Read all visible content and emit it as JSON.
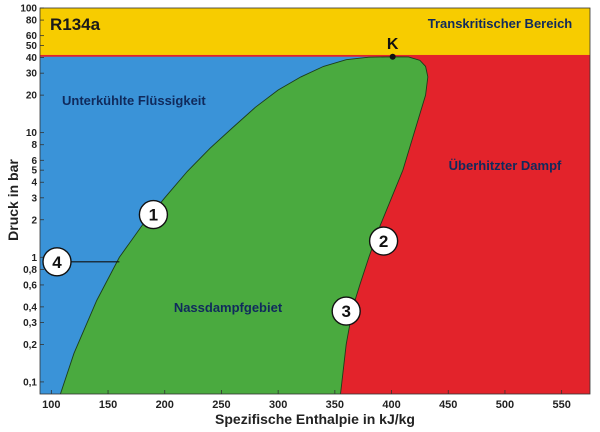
{
  "chart_data": {
    "type": "area",
    "title": "R134a",
    "xlabel": "Spezifische Enthalpie in kJ/kg",
    "ylabel": "Druck in bar",
    "xlim": [
      90,
      575
    ],
    "ylim": [
      0.08,
      100
    ],
    "y_scale": "log",
    "x_ticks": [
      "100",
      "150",
      "200",
      "250",
      "300",
      "350",
      "400",
      "450",
      "500",
      "550"
    ],
    "y_ticks": [
      {
        "v": 0.1,
        "label": "0,1"
      },
      {
        "v": 0.2,
        "label": "0,2"
      },
      {
        "v": 0.3,
        "label": "0,3"
      },
      {
        "v": 0.4,
        "label": "0,4"
      },
      {
        "v": 0.6,
        "label": "0,6"
      },
      {
        "v": 0.8,
        "label": "0,8"
      },
      {
        "v": 1,
        "label": "1"
      },
      {
        "v": 2,
        "label": "2"
      },
      {
        "v": 3,
        "label": "3"
      },
      {
        "v": 4,
        "label": "4"
      },
      {
        "v": 5,
        "label": "5"
      },
      {
        "v": 6,
        "label": "6"
      },
      {
        "v": 8,
        "label": "8"
      },
      {
        "v": 10,
        "label": "10"
      },
      {
        "v": 20,
        "label": "20"
      },
      {
        "v": 30,
        "label": "30"
      },
      {
        "v": 40,
        "label": "40"
      },
      {
        "v": 50,
        "label": "50"
      },
      {
        "v": 60,
        "label": "60"
      },
      {
        "v": 80,
        "label": "80"
      },
      {
        "v": 100,
        "label": "100"
      }
    ],
    "supercritical_pressure": 42,
    "critical_point": {
      "h": 401,
      "p": 40.6,
      "label": "K"
    },
    "liquid_line": [
      {
        "h": 108,
        "p": 0.08
      },
      {
        "h": 120,
        "p": 0.17
      },
      {
        "h": 140,
        "p": 0.45
      },
      {
        "h": 160,
        "p": 1.0
      },
      {
        "h": 180,
        "p": 1.8
      },
      {
        "h": 200,
        "p": 3.0
      },
      {
        "h": 220,
        "p": 4.9
      },
      {
        "h": 240,
        "p": 7.5
      },
      {
        "h": 260,
        "p": 11
      },
      {
        "h": 280,
        "p": 16
      },
      {
        "h": 300,
        "p": 22
      },
      {
        "h": 320,
        "p": 28
      },
      {
        "h": 340,
        "p": 34
      },
      {
        "h": 360,
        "p": 38.5
      },
      {
        "h": 380,
        "p": 40.3
      },
      {
        "h": 401,
        "p": 40.6
      }
    ],
    "vapor_line": [
      {
        "h": 401,
        "p": 40.6
      },
      {
        "h": 415,
        "p": 40.5
      },
      {
        "h": 425,
        "p": 38
      },
      {
        "h": 430,
        "p": 34
      },
      {
        "h": 432,
        "p": 28
      },
      {
        "h": 430,
        "p": 20
      },
      {
        "h": 420,
        "p": 10
      },
      {
        "h": 410,
        "p": 5
      },
      {
        "h": 400,
        "p": 3
      },
      {
        "h": 390,
        "p": 1.8
      },
      {
        "h": 380,
        "p": 1.0
      },
      {
        "h": 372,
        "p": 0.6
      },
      {
        "h": 366,
        "p": 0.4
      },
      {
        "h": 360,
        "p": 0.2
      },
      {
        "h": 355,
        "p": 0.08
      }
    ],
    "regions": [
      {
        "name": "Unterkühlte Flüssigkeit",
        "color": "#3a93d8"
      },
      {
        "name": "Nassdampfgebiet",
        "color": "#4aaa3f"
      },
      {
        "name": "Überhitzter Dampf",
        "color": "#e3232b"
      },
      {
        "name": "Transkritischer Bereich",
        "color": "#f7cc00"
      }
    ],
    "markers": [
      {
        "label": "1",
        "h": 190,
        "p": 2.2
      },
      {
        "label": "2",
        "h": 393,
        "p": 1.35
      },
      {
        "label": "3",
        "h": 360,
        "p": 0.37
      },
      {
        "label": "4",
        "h": 105,
        "p": 0.92,
        "arrow_to_h": 160,
        "arrow_to_p": 0.92
      }
    ]
  }
}
